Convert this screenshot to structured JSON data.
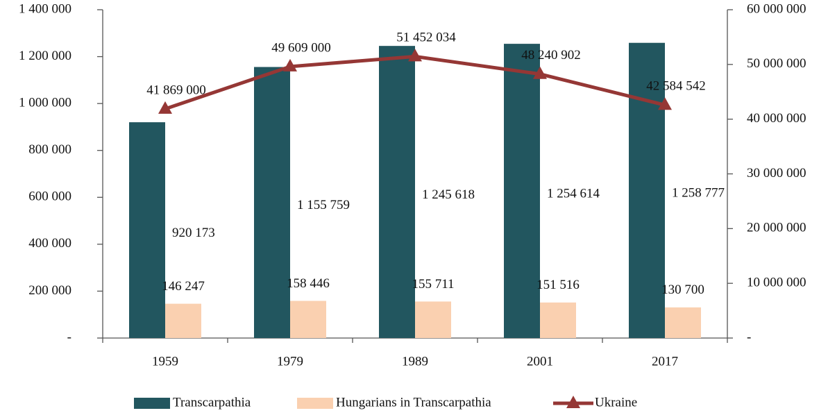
{
  "chart_data": {
    "type": "bar",
    "categories": [
      "1959",
      "1979",
      "1989",
      "2001",
      "2017"
    ],
    "series": [
      {
        "name": "Transcarpathia",
        "color": "#22565f",
        "values": [
          920173,
          1155759,
          1245618,
          1254614,
          1258777
        ],
        "value_labels": [
          "920 173",
          "1 155 759",
          "1 245 618",
          "1 254 614",
          "1 258 777"
        ]
      },
      {
        "name": "Hungarians in Transcarpathia",
        "color": "#fad0b0",
        "values": [
          146247,
          158446,
          155711,
          151516,
          130700
        ],
        "value_labels": [
          "146 247",
          "158 446",
          "155 711",
          "151 516",
          "130 700"
        ]
      },
      {
        "name": "Ukraine",
        "type": "line",
        "axis": "y2",
        "color": "#953735",
        "values": [
          41869000,
          49609000,
          51452034,
          48240902,
          42584542
        ],
        "value_labels": [
          "41 869 000",
          "49 609 000",
          "51 452 034",
          "48 240 902",
          "42 584 542"
        ]
      }
    ],
    "ylim": [
      0,
      1400000
    ],
    "yticks": [
      {
        "value": 0,
        "label": "-"
      },
      {
        "value": 200000,
        "label": "200 000"
      },
      {
        "value": 400000,
        "label": "400 000"
      },
      {
        "value": 600000,
        "label": "600 000"
      },
      {
        "value": 800000,
        "label": "800 000"
      },
      {
        "value": 1000000,
        "label": "1 000 000"
      },
      {
        "value": 1200000,
        "label": "1 200 000"
      },
      {
        "value": 1400000,
        "label": "1 400 000"
      }
    ],
    "y2lim": [
      0,
      60000000
    ],
    "y2ticks": [
      {
        "value": 0,
        "label": "-"
      },
      {
        "value": 10000000,
        "label": "10 000 000"
      },
      {
        "value": 20000000,
        "label": "20 000 000"
      },
      {
        "value": 30000000,
        "label": "30 000 000"
      },
      {
        "value": 40000000,
        "label": "40 000 000"
      },
      {
        "value": 50000000,
        "label": "50 000 000"
      },
      {
        "value": 60000000,
        "label": "60 000 000"
      }
    ],
    "legend": "bottom"
  }
}
